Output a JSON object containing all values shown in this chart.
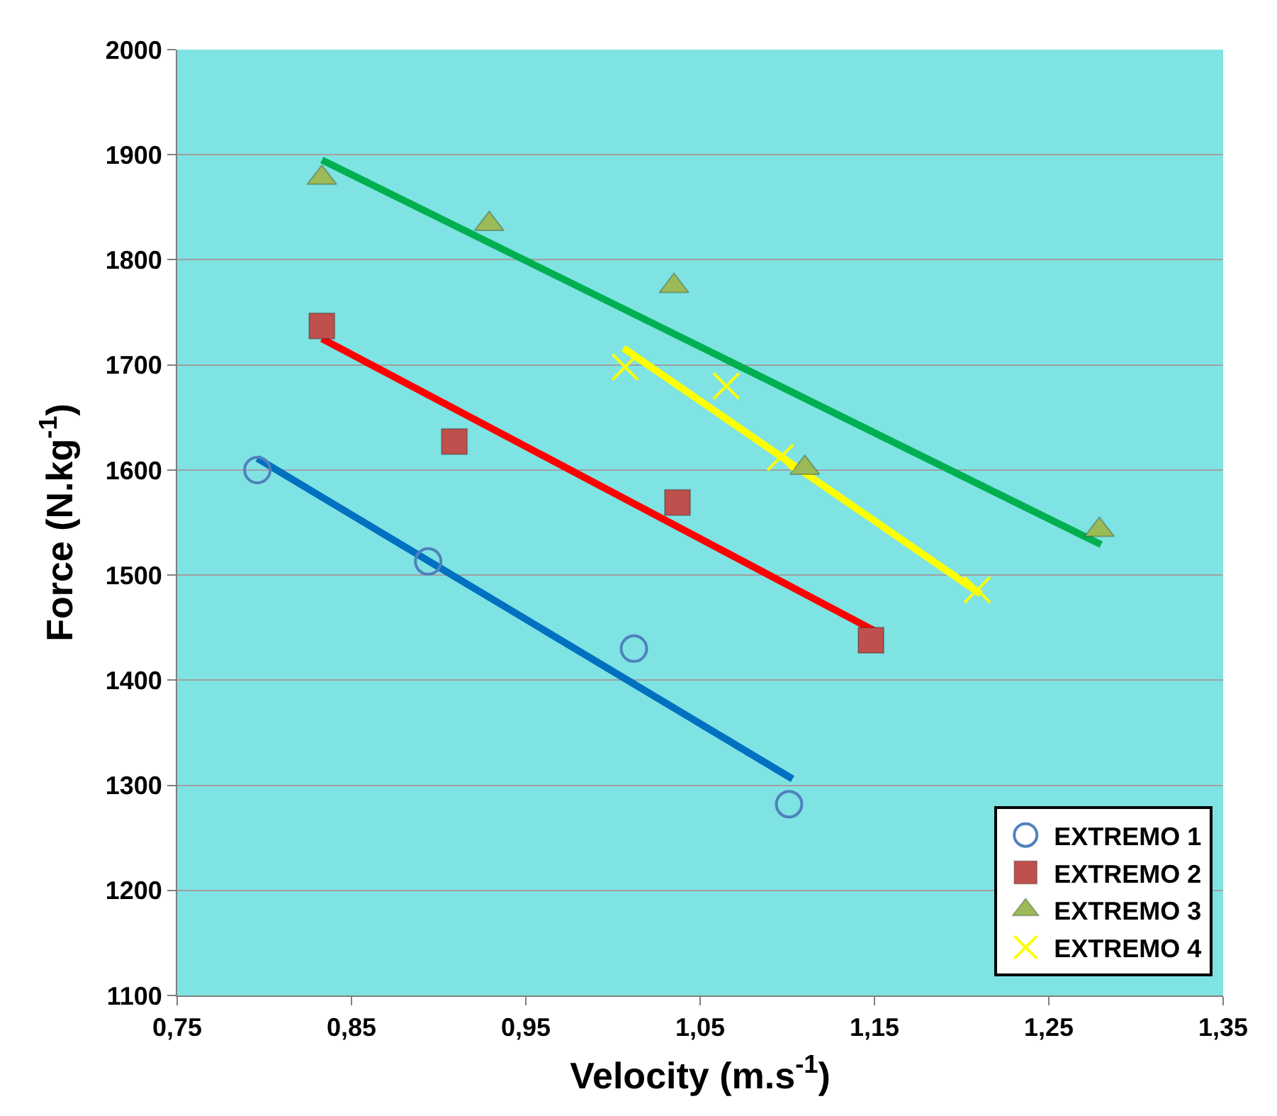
{
  "chart_data": {
    "type": "scatter",
    "xlabel": "Velocity (m.s$^{-1}$)",
    "ylabel": "Force (N.kg$^{-1}$)",
    "xlim": [
      0.75,
      1.35
    ],
    "xticks": [
      {
        "value": 0.75,
        "label": "0,75"
      },
      {
        "value": 0.85,
        "label": "0,85"
      },
      {
        "value": 0.95,
        "label": "0,95"
      },
      {
        "value": 1.05,
        "label": "1,05"
      },
      {
        "value": 1.15,
        "label": "1,15"
      },
      {
        "value": 1.25,
        "label": "1,25"
      },
      {
        "value": 1.35,
        "label": "1,35"
      }
    ],
    "ylim": [
      1100,
      2000
    ],
    "yticks": [
      1100,
      1200,
      1300,
      1400,
      1500,
      1600,
      1700,
      1800,
      1900,
      2000
    ],
    "grid": "y",
    "legend": "bottom right",
    "series": [
      {
        "name": "EXTREMO 1",
        "color": "#4f81bd",
        "marker": "circle",
        "x": [
          0.796,
          0.894,
          1.012,
          1.101
        ],
        "values": [
          1600,
          1513,
          1430,
          1282
        ]
      },
      {
        "name": "EXTREMO 2",
        "color": "#c0504d",
        "marker": "square",
        "x": [
          0.833,
          0.909,
          1.037,
          1.148
        ],
        "values": [
          1737,
          1627,
          1569,
          1438
        ]
      },
      {
        "name": "EXTREMO 3",
        "color": "#9bbb59",
        "marker": "triangle",
        "x": [
          0.833,
          0.929,
          1.035,
          1.11,
          1.279
        ],
        "values": [
          1878,
          1834,
          1775,
          1602,
          1543
        ]
      },
      {
        "name": "EXTREMO 4",
        "color": "#ffff00",
        "marker": "cross",
        "x": [
          1.007,
          1.065,
          1.096,
          1.209
        ],
        "values": [
          1698,
          1680,
          1612,
          1486
        ]
      },
      {
        "type": "line",
        "color": "#0070c0",
        "x": [
          0.796,
          1.103
        ],
        "values": [
          1611,
          1306
        ]
      },
      {
        "type": "line",
        "color": "#ff0000",
        "x": [
          0.833,
          1.15
        ],
        "values": [
          1725,
          1447
        ]
      },
      {
        "type": "line",
        "color": "#00b050",
        "x": [
          0.833,
          1.28
        ],
        "values": [
          1895,
          1529
        ]
      },
      {
        "type": "line",
        "color": "#ffff00",
        "x": [
          1.006,
          1.211
        ],
        "values": [
          1716,
          1482
        ]
      }
    ]
  }
}
